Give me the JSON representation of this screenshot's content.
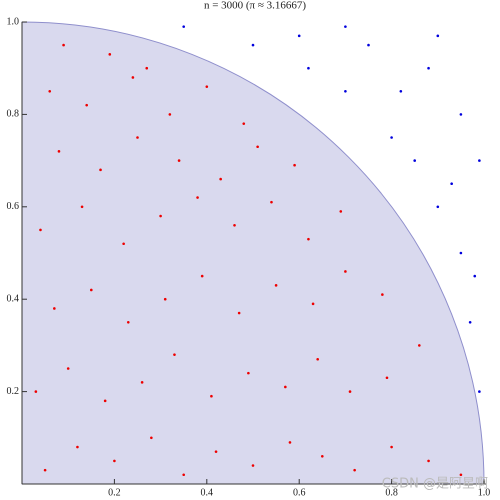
{
  "chart_data": {
    "type": "scatter",
    "title": "n = 3000 (π ≈ 3.16667)",
    "watermark": "CSDN @是阿星啊",
    "xlim": [
      0,
      1
    ],
    "ylim": [
      0,
      1
    ],
    "xticks": [
      0.2,
      0.4,
      0.6,
      0.8,
      {
        "value": 1,
        "label": "1.0"
      }
    ],
    "yticks": [
      0.2,
      0.4,
      0.6,
      0.8,
      {
        "value": 1,
        "label": "1.0"
      }
    ],
    "series": [
      {
        "color": "#ee0000",
        "x": [
          0.05,
          0.12,
          0.2,
          0.28,
          0.35,
          0.42,
          0.5,
          0.58,
          0.65,
          0.72,
          0.8,
          0.88,
          0.95,
          0.03,
          0.1,
          0.18,
          0.26,
          0.33,
          0.41,
          0.49,
          0.57,
          0.64,
          0.71,
          0.79,
          0.86,
          0.07,
          0.15,
          0.23,
          0.31,
          0.39,
          0.47,
          0.55,
          0.63,
          0.7,
          0.78,
          0.04,
          0.13,
          0.22,
          0.3,
          0.38,
          0.46,
          0.54,
          0.62,
          0.69,
          0.08,
          0.17,
          0.25,
          0.34,
          0.43,
          0.51,
          0.59,
          0.06,
          0.14,
          0.24,
          0.32,
          0.4,
          0.48,
          0.09,
          0.19,
          0.27
        ],
        "y": [
          0.03,
          0.08,
          0.05,
          0.1,
          0.02,
          0.07,
          0.04,
          0.09,
          0.06,
          0.03,
          0.08,
          0.05,
          0.02,
          0.2,
          0.25,
          0.18,
          0.22,
          0.28,
          0.19,
          0.24,
          0.21,
          0.27,
          0.2,
          0.23,
          0.3,
          0.38,
          0.42,
          0.35,
          0.4,
          0.45,
          0.37,
          0.43,
          0.39,
          0.46,
          0.41,
          0.55,
          0.6,
          0.52,
          0.58,
          0.62,
          0.56,
          0.61,
          0.53,
          0.59,
          0.72,
          0.68,
          0.75,
          0.7,
          0.66,
          0.73,
          0.69,
          0.85,
          0.82,
          0.88,
          0.8,
          0.86,
          0.78,
          0.95,
          0.93,
          0.9
        ]
      },
      {
        "color": "#0000dd",
        "x": [
          0.35,
          0.5,
          0.62,
          0.7,
          0.8,
          0.85,
          0.9,
          0.95,
          0.97,
          0.99,
          0.75,
          0.88,
          0.95,
          0.6,
          0.82,
          0.93,
          0.98,
          0.7,
          0.9,
          0.99
        ],
        "y": [
          0.99,
          0.95,
          0.9,
          0.85,
          0.75,
          0.7,
          0.6,
          0.5,
          0.35,
          0.2,
          0.95,
          0.9,
          0.8,
          0.97,
          0.85,
          0.65,
          0.45,
          0.99,
          0.97,
          0.7
        ]
      }
    ]
  }
}
